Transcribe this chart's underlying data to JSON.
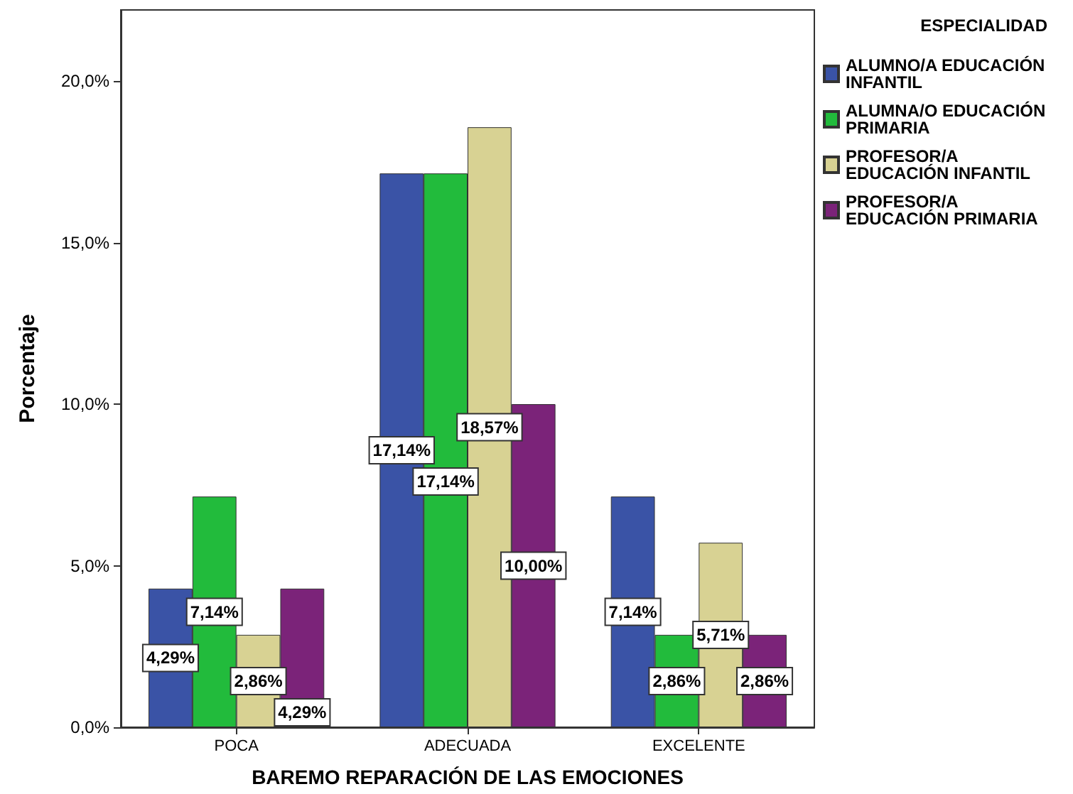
{
  "chart_data": {
    "type": "bar",
    "xlabel": "BAREMO REPARACIÓN DE LAS EMOCIONES",
    "ylabel": "Porcentaje",
    "legend_title": "ESPECIALIDAD",
    "legend": "right",
    "categories": [
      "POCA",
      "ADECUADA",
      "EXCELENTE"
    ],
    "series": [
      {
        "name": "ALUMNO/A EDUCACIÓN INFANTIL",
        "color": "#3a53a6",
        "values": [
          4.29,
          17.14,
          7.14
        ],
        "value_labels": [
          "4,29%",
          "17,14%",
          "7,14%"
        ]
      },
      {
        "name": "ALUMNA/O EDUCACIÓN PRIMARIA",
        "color": "#22bb3c",
        "values": [
          7.14,
          17.14,
          2.86
        ],
        "value_labels": [
          "7,14%",
          "17,14%",
          "2,86%"
        ]
      },
      {
        "name": "PROFESOR/A EDUCACIÓN INFANTIL",
        "color": "#d8d293",
        "values": [
          2.86,
          18.57,
          5.71
        ],
        "value_labels": [
          "2,86%",
          "18,57%",
          "5,71%"
        ]
      },
      {
        "name": "PROFESOR/A EDUCACIÓN PRIMARIA",
        "color": "#7b2379",
        "values": [
          4.29,
          10.0,
          2.86
        ],
        "value_labels": [
          "4,29%",
          "10,00%",
          "2,86%"
        ]
      }
    ],
    "ylim": [
      0,
      22.2
    ],
    "yticks": [
      {
        "value": 0,
        "label": "0,0%"
      },
      {
        "value": 5,
        "label": "5,0%"
      },
      {
        "value": 10,
        "label": "10,0%"
      },
      {
        "value": 15,
        "label": "15,0%"
      },
      {
        "value": 20,
        "label": "20,0%"
      }
    ],
    "grid": false
  }
}
